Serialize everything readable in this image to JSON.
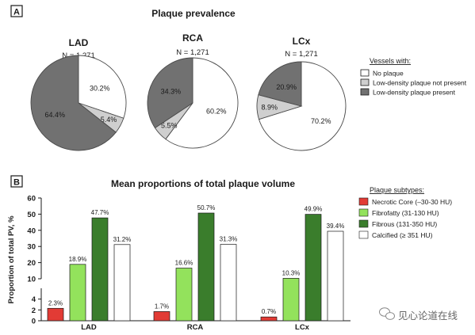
{
  "panel_a": {
    "letter": "A",
    "title": "Plaque prevalence",
    "legend": {
      "title": "Vessels with:",
      "items": [
        {
          "label": "No plaque",
          "color": "#ffffff"
        },
        {
          "label": "Low-density plaque not present",
          "color": "#cfcfcf"
        },
        {
          "label": "Low-density plaque present",
          "color": "#717171"
        }
      ]
    }
  },
  "panel_b": {
    "letter": "B",
    "title": "Mean proportions of total plaque volume",
    "legend": {
      "title": "Plaque subtypes:",
      "items": [
        {
          "label": "Necrotic Core (–30-30 HU)",
          "color": "#e23b35"
        },
        {
          "label": "Fibrofatty (31-130 HU)",
          "color": "#93e25c"
        },
        {
          "label": "Fibrous (131-350 HU)",
          "color": "#3a7d2c"
        },
        {
          "label": "Calcified (≥ 351 HU)",
          "color": "#ffffff"
        }
      ]
    }
  },
  "watermark": "见心论道在线",
  "chart_data": [
    {
      "type": "pie",
      "title": "LAD",
      "subtitle": "N = 1,271",
      "slices": [
        {
          "name": "No plaque",
          "value": 30.2,
          "label": "30.2%"
        },
        {
          "name": "Low-density plaque not present",
          "value": 5.4,
          "label": "5.4%"
        },
        {
          "name": "Low-density plaque present",
          "value": 64.4,
          "label": "64.4%"
        }
      ]
    },
    {
      "type": "pie",
      "title": "RCA",
      "subtitle": "N = 1,271",
      "slices": [
        {
          "name": "No plaque",
          "value": 60.2,
          "label": "60.2%"
        },
        {
          "name": "Low-density plaque not present",
          "value": 5.5,
          "label": "5.5%"
        },
        {
          "name": "Low-density plaque present",
          "value": 34.3,
          "label": "34.3%"
        }
      ]
    },
    {
      "type": "pie",
      "title": "LCx",
      "subtitle": "N = 1,271",
      "slices": [
        {
          "name": "No plaque",
          "value": 70.2,
          "label": "70.2%"
        },
        {
          "name": "Low-density plaque not present",
          "value": 8.9,
          "label": "8.9%"
        },
        {
          "name": "Low-density plaque present",
          "value": 20.9,
          "label": "20.9%"
        }
      ]
    },
    {
      "type": "bar",
      "title": "Mean proportions of total plaque volume",
      "ylabel": "Proportion of total PV, %",
      "categories": [
        "LAD",
        "RCA",
        "LCx"
      ],
      "axis_break": {
        "lower": [
          0,
          6
        ],
        "upper": [
          10,
          60
        ]
      },
      "yticks_lower": [
        "0",
        "2",
        "4"
      ],
      "yticks_upper": [
        "10",
        "20",
        "30",
        "40",
        "50",
        "60"
      ],
      "series": [
        {
          "name": "Necrotic Core (–30-30 HU)",
          "values": [
            2.3,
            1.7,
            0.7
          ],
          "labels": [
            "2.3%",
            "1.7%",
            "0.7%"
          ]
        },
        {
          "name": "Fibrofatty (31-130 HU)",
          "values": [
            18.9,
            16.6,
            10.3
          ],
          "labels": [
            "18.9%",
            "16.6%",
            "10.3%"
          ]
        },
        {
          "name": "Fibrous (131-350 HU)",
          "values": [
            47.7,
            50.7,
            49.9
          ],
          "labels": [
            "47.7%",
            "50.7%",
            "49.9%"
          ]
        },
        {
          "name": "Calcified (≥ 351 HU)",
          "values": [
            31.2,
            31.3,
            39.4
          ],
          "labels": [
            "31.2%",
            "31.3%",
            "39.4%"
          ]
        }
      ]
    }
  ]
}
